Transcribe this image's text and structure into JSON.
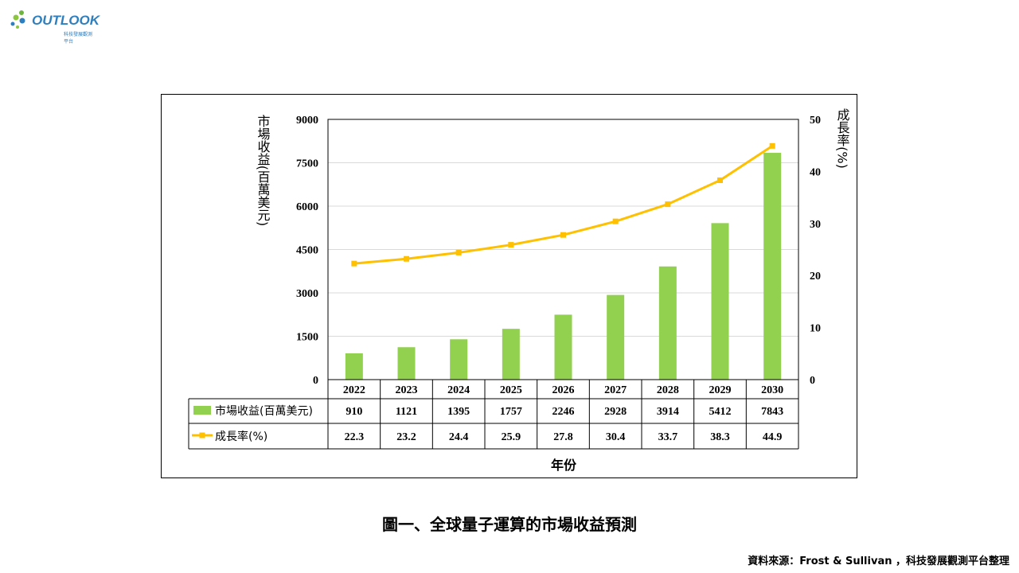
{
  "logo": {
    "brand": "OUTLOOK",
    "subtitle": "科技發展觀測平台"
  },
  "chart_data": {
    "type": "bar",
    "categories": [
      "2022",
      "2023",
      "2024",
      "2025",
      "2026",
      "2027",
      "2028",
      "2029",
      "2030"
    ],
    "series": [
      {
        "name": "市場收益(百萬美元)",
        "type": "bar",
        "axis": "left",
        "values": [
          910,
          1121,
          1395,
          1757,
          2246,
          2928,
          3914,
          5412,
          7843
        ]
      },
      {
        "name": "成長率(%)",
        "type": "line",
        "axis": "right",
        "values": [
          22.3,
          23.2,
          24.4,
          25.9,
          27.8,
          30.4,
          33.7,
          38.3,
          44.9
        ]
      }
    ],
    "xlabel": "年份",
    "ylabel": "市場收益(百萬美元)",
    "y2label": "成長率(%)",
    "ylim": [
      0,
      9000
    ],
    "y2lim": [
      0,
      50
    ],
    "yticks": [
      0,
      1500,
      3000,
      4500,
      6000,
      7500,
      9000
    ],
    "y2ticks": [
      0,
      10,
      20,
      30,
      40,
      50
    ],
    "grid": true,
    "data_table": true,
    "colors": {
      "bar": "#92d050",
      "line": "#ffc000"
    }
  },
  "caption": "圖一、全球量子運算的市場收益預測",
  "source": "資料來源：Frost & Sullivan ，科技發展觀測平台整理"
}
